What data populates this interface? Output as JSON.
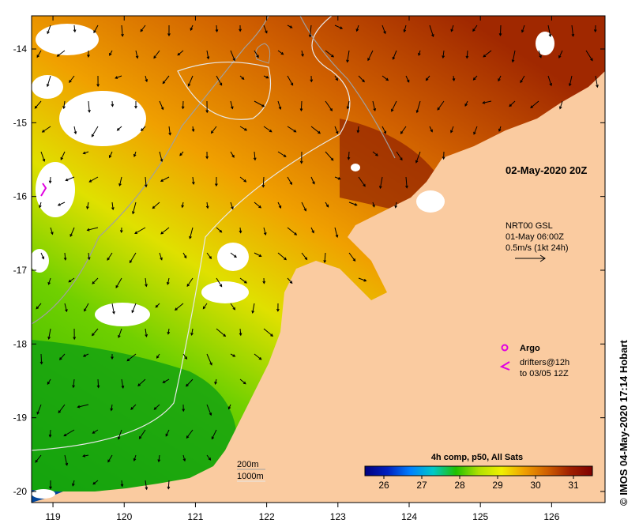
{
  "date_label": "02-May-2020 20Z",
  "currents": {
    "source": "NRT00 GSL",
    "time": "01-May 06:00Z",
    "scale": "0.5m/s (1kt 24h)"
  },
  "legend": {
    "argo": "Argo",
    "drifters_line1": "drifters@12h",
    "drifters_line2": "to 03/05 12Z",
    "argo_color": "#e000e0"
  },
  "isobaths": {
    "shallow": "200m",
    "deep": "1000m"
  },
  "colorbar": {
    "title": "4h comp, p50, All Sats",
    "min": 25.5,
    "max": 31.5,
    "ticks": [
      "26",
      "27",
      "28",
      "29",
      "30",
      "31"
    ],
    "colors": [
      "#00007f",
      "#0020c0",
      "#0080ff",
      "#00c8c8",
      "#20c000",
      "#b0e000",
      "#f0f000",
      "#f0a000",
      "#d06000",
      "#a02000",
      "#7f0000"
    ]
  },
  "axes": {
    "x_ticks": [
      "119",
      "120",
      "121",
      "122",
      "123",
      "124",
      "125",
      "126"
    ],
    "y_ticks": [
      "-14",
      "-15",
      "-16",
      "-17",
      "-18",
      "-19",
      "-20"
    ]
  },
  "colors": {
    "land": "#facba0",
    "cloud": "#ffffff"
  },
  "credit": "© IMOS 04-May-2020 17:14 Hobart"
}
